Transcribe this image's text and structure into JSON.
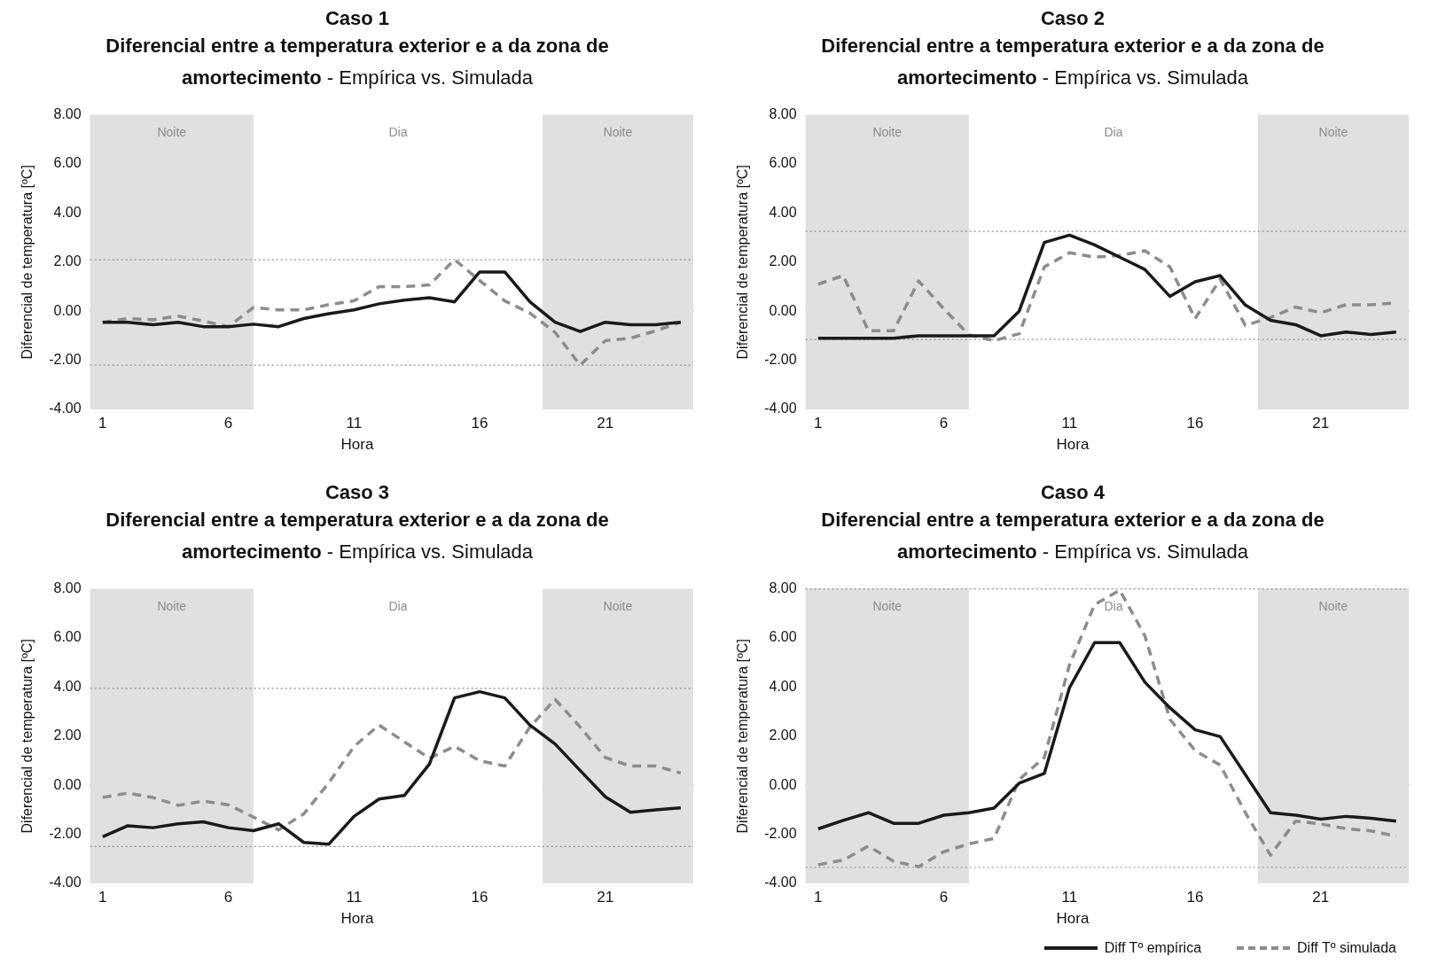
{
  "chart_data": [
    {
      "type": "line",
      "title": "Caso 1",
      "subtitle": "Diferencial entre a temperatura exterior e a da zona de amortecimento - Empírica vs. Simulada",
      "xlabel": "Hora",
      "ylabel": "Diferencial de temperatura [ºC]",
      "x": [
        1,
        2,
        3,
        4,
        5,
        6,
        7,
        8,
        9,
        10,
        11,
        12,
        13,
        14,
        15,
        16,
        17,
        18,
        19,
        20,
        21,
        22,
        23,
        24
      ],
      "xlim": [
        0.5,
        24.5
      ],
      "xticks": [
        1,
        6,
        11,
        16,
        21
      ],
      "ylim": [
        -4,
        8
      ],
      "yticks": [
        {
          "value": -4,
          "label": "-4.00"
        },
        {
          "value": -2,
          "label": "-2.00"
        },
        {
          "value": 0,
          "label": "0.00"
        },
        {
          "value": 2,
          "label": "2.00"
        },
        {
          "value": 4,
          "label": "4.00"
        },
        {
          "value": 6,
          "label": "6.00"
        },
        {
          "value": 8,
          "label": "8.00"
        }
      ],
      "series": [
        {
          "color": "#1a1a1a",
          "line_style": "solid",
          "values": [
            -0.45,
            -0.45,
            -0.55,
            -0.45,
            -0.63,
            -0.63,
            -0.53,
            -0.63,
            -0.3,
            -0.1,
            0.05,
            0.3,
            0.45,
            0.55,
            0.38,
            1.6,
            1.6,
            0.38,
            -0.45,
            -0.83,
            -0.45,
            -0.55,
            -0.55,
            -0.45
          ]
        },
        {
          "color": "#8c8c8c",
          "line_style": "dashed",
          "values": [
            -0.45,
            -0.3,
            -0.35,
            -0.2,
            -0.4,
            -0.63,
            0.15,
            0.05,
            0.05,
            0.27,
            0.42,
            1.0,
            1.0,
            1.07,
            2.1,
            1.25,
            0.42,
            -0.08,
            -0.86,
            -2.2,
            -1.2,
            -1.1,
            -0.8,
            -0.45
          ]
        }
      ],
      "ref_lines": [
        {
          "axis": "y",
          "value": 2.1,
          "color": "#8c8c8c",
          "line_style": "dotted"
        },
        {
          "axis": "y",
          "value": -2.2,
          "color": "#8c8c8c",
          "line_style": "dotted"
        }
      ],
      "bands": [
        {
          "axis": "x",
          "from": 0.5,
          "to": 7,
          "label": "Noite",
          "color": "#e0e0e0"
        },
        {
          "axis": "x",
          "from": 7,
          "to": 18.5,
          "label": "Dia",
          "color": "#ffffff"
        },
        {
          "axis": "x",
          "from": 18.5,
          "to": 24.5,
          "label": "Noite",
          "color": "#e0e0e0"
        }
      ]
    },
    {
      "type": "line",
      "title": "Caso 2",
      "subtitle": "Diferencial entre a temperatura exterior e a da zona de amortecimento - Empírica vs. Simulada",
      "xlabel": "Hora",
      "ylabel": "Diferencial de temperatura [ºC]",
      "x": [
        1,
        2,
        3,
        4,
        5,
        6,
        7,
        8,
        9,
        10,
        11,
        12,
        13,
        14,
        15,
        16,
        17,
        18,
        19,
        20,
        21,
        22,
        23,
        24
      ],
      "xlim": [
        0.5,
        24.5
      ],
      "xticks": [
        1,
        6,
        11,
        16,
        21
      ],
      "ylim": [
        -4,
        8
      ],
      "yticks": [
        {
          "value": -4,
          "label": "-4.00"
        },
        {
          "value": -2,
          "label": "-2.00"
        },
        {
          "value": 0,
          "label": "0.00"
        },
        {
          "value": 2,
          "label": "2.00"
        },
        {
          "value": 4,
          "label": "4.00"
        },
        {
          "value": 6,
          "label": "6.00"
        },
        {
          "value": 8,
          "label": "8.00"
        }
      ],
      "series": [
        {
          "color": "#1a1a1a",
          "line_style": "solid",
          "values": [
            -1.1,
            -1.1,
            -1.1,
            -1.1,
            -1.0,
            -1.0,
            -1.0,
            -1.0,
            0.0,
            2.8,
            3.1,
            2.7,
            2.2,
            1.7,
            0.6,
            1.2,
            1.45,
            0.25,
            -0.37,
            -0.55,
            -1.0,
            -0.85,
            -0.95,
            -0.85
          ]
        },
        {
          "color": "#8c8c8c",
          "line_style": "dashed",
          "values": [
            1.1,
            1.45,
            -0.8,
            -0.8,
            1.23,
            0.1,
            -0.97,
            -1.2,
            -0.92,
            1.8,
            2.38,
            2.2,
            2.27,
            2.46,
            1.8,
            -0.3,
            1.3,
            -0.58,
            -0.26,
            0.17,
            -0.06,
            0.26,
            0.26,
            0.34
          ]
        }
      ],
      "ref_lines": [
        {
          "axis": "y",
          "value": 3.25,
          "color": "#8c8c8c",
          "line_style": "dotted"
        },
        {
          "axis": "y",
          "value": -1.15,
          "color": "#8c8c8c",
          "line_style": "dotted"
        }
      ],
      "bands": [
        {
          "axis": "x",
          "from": 0.5,
          "to": 7,
          "label": "Noite",
          "color": "#e0e0e0"
        },
        {
          "axis": "x",
          "from": 7,
          "to": 18.5,
          "label": "Dia",
          "color": "#ffffff"
        },
        {
          "axis": "x",
          "from": 18.5,
          "to": 24.5,
          "label": "Noite",
          "color": "#e0e0e0"
        }
      ]
    },
    {
      "type": "line",
      "title": "Caso 3",
      "subtitle": "Diferencial entre a temperatura exterior e a da zona de amortecimento - Empírica vs. Simulada",
      "xlabel": "Hora",
      "ylabel": "Diferencial de temperatura [ºC]",
      "x": [
        1,
        2,
        3,
        4,
        5,
        6,
        7,
        8,
        9,
        10,
        11,
        12,
        13,
        14,
        15,
        16,
        17,
        18,
        19,
        20,
        21,
        22,
        23,
        24
      ],
      "xlim": [
        0.5,
        24.5
      ],
      "xticks": [
        1,
        6,
        11,
        16,
        21
      ],
      "ylim": [
        -4,
        8
      ],
      "yticks": [
        {
          "value": -4,
          "label": "-4.00"
        },
        {
          "value": -2,
          "label": "-2.00"
        },
        {
          "value": 0,
          "label": "0.00"
        },
        {
          "value": 2,
          "label": "2.00"
        },
        {
          "value": 4,
          "label": "4.00"
        },
        {
          "value": 6,
          "label": "6.00"
        },
        {
          "value": 8,
          "label": "8.00"
        }
      ],
      "series": [
        {
          "color": "#1a1a1a",
          "line_style": "solid",
          "values": [
            -2.1,
            -1.65,
            -1.73,
            -1.57,
            -1.49,
            -1.73,
            -1.85,
            -1.57,
            -2.33,
            -2.4,
            -1.27,
            -0.56,
            -0.42,
            0.86,
            3.56,
            3.81,
            3.56,
            2.45,
            1.68,
            0.6,
            -0.47,
            -1.1,
            -1.0,
            -0.92
          ]
        },
        {
          "color": "#8c8c8c",
          "line_style": "dashed",
          "values": [
            -0.5,
            -0.32,
            -0.5,
            -0.82,
            -0.65,
            -0.8,
            -1.3,
            -1.82,
            -1.17,
            0.1,
            1.58,
            2.45,
            1.77,
            1.1,
            1.58,
            1.0,
            0.78,
            2.37,
            3.5,
            2.37,
            1.13,
            0.78,
            0.78,
            0.5
          ]
        }
      ],
      "ref_lines": [
        {
          "axis": "y",
          "value": 3.95,
          "color": "#8c8c8c",
          "line_style": "dotted"
        },
        {
          "axis": "y",
          "value": -2.5,
          "color": "#8c8c8c",
          "line_style": "dotted"
        }
      ],
      "bands": [
        {
          "axis": "x",
          "from": 0.5,
          "to": 7,
          "label": "Noite",
          "color": "#e0e0e0"
        },
        {
          "axis": "x",
          "from": 7,
          "to": 18.5,
          "label": "Dia",
          "color": "#ffffff"
        },
        {
          "axis": "x",
          "from": 18.5,
          "to": 24.5,
          "label": "Noite",
          "color": "#e0e0e0"
        }
      ]
    },
    {
      "type": "line",
      "title": "Caso 4",
      "subtitle": "Diferencial entre a temperatura exterior e a da zona de amortecimento - Empírica vs. Simulada",
      "xlabel": "Hora",
      "ylabel": "Diferencial de temperatura [ºC]",
      "x": [
        1,
        2,
        3,
        4,
        5,
        6,
        7,
        8,
        9,
        10,
        11,
        12,
        13,
        14,
        15,
        16,
        17,
        18,
        19,
        20,
        21,
        22,
        23,
        24
      ],
      "xlim": [
        0.5,
        24.5
      ],
      "xticks": [
        1,
        6,
        11,
        16,
        21
      ],
      "ylim": [
        -4,
        8
      ],
      "yticks": [
        {
          "value": -4,
          "label": "-4.00"
        },
        {
          "value": -2,
          "label": "-2.00"
        },
        {
          "value": 0,
          "label": "0.00"
        },
        {
          "value": 2,
          "label": "2.00"
        },
        {
          "value": 4,
          "label": "4.00"
        },
        {
          "value": 6,
          "label": "6.00"
        },
        {
          "value": 8,
          "label": "8.00"
        }
      ],
      "series": [
        {
          "name": "Diff Tº empírica",
          "color": "#1a1a1a",
          "line_style": "solid",
          "values": [
            -1.78,
            -1.43,
            -1.12,
            -1.55,
            -1.55,
            -1.22,
            -1.12,
            -0.93,
            0.08,
            0.48,
            3.97,
            5.81,
            5.81,
            4.2,
            3.15,
            2.26,
            1.98,
            0.43,
            -1.12,
            -1.22,
            -1.38,
            -1.27,
            -1.35,
            -1.46
          ]
        },
        {
          "name": "Diff Tº simulada",
          "color": "#8c8c8c",
          "line_style": "dashed",
          "values": [
            -3.24,
            -3.05,
            -2.48,
            -3.1,
            -3.32,
            -2.71,
            -2.39,
            -2.17,
            0.23,
            1.13,
            4.9,
            7.36,
            7.95,
            6.09,
            2.68,
            1.41,
            0.82,
            -1.12,
            -2.85,
            -1.46,
            -1.58,
            -1.77,
            -1.86,
            -2.08
          ]
        }
      ],
      "ref_lines": [
        {
          "axis": "y",
          "value": 8.0,
          "color": "#8c8c8c",
          "line_style": "dotted"
        },
        {
          "axis": "y",
          "value": -3.35,
          "color": "#8c8c8c",
          "line_style": "dotted"
        }
      ],
      "bands": [
        {
          "axis": "x",
          "from": 0.5,
          "to": 7,
          "label": "Noite",
          "color": "#e0e0e0"
        },
        {
          "axis": "x",
          "from": 7,
          "to": 18.5,
          "label": "Dia",
          "color": "#ffffff"
        },
        {
          "axis": "x",
          "from": 18.5,
          "to": 24.5,
          "label": "Noite",
          "color": "#e0e0e0"
        }
      ],
      "legend": "bottom right"
    }
  ]
}
